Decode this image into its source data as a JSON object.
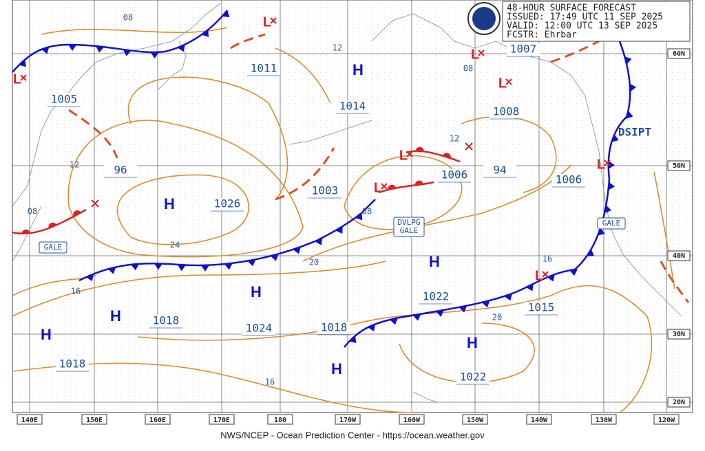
{
  "header": {
    "lines": [
      "48-HOUR SURFACE FORECAST",
      "ISSUED: 17:49 UTC 11 SEP 2025",
      "VALID:  12:00 UTC 13 SEP 2025",
      "FCSTR:  Ehrbar"
    ]
  },
  "footer": "NWS/NCEP - Ocean Prediction Center - https://ocean.weather.gov",
  "longitudes": [
    "140E",
    "150E",
    "160E",
    "170E",
    "180",
    "170W",
    "160W",
    "150W",
    "140W",
    "130W",
    "120W"
  ],
  "latitudes": [
    "60N",
    "50N",
    "40N",
    "30N",
    "20N"
  ],
  "pressure_labels": [
    "1011",
    "1005",
    "1014",
    "1008",
    "1007",
    "96",
    "1003",
    "1006",
    "94",
    "1006",
    "1026",
    "1022",
    "1018",
    "1024",
    "1018",
    "1015",
    "1022",
    "1018"
  ],
  "isobar_labels": [
    "08",
    "12",
    "08",
    "12",
    "12",
    "08",
    "08",
    "24",
    "20",
    "16",
    "16",
    "20",
    "16"
  ],
  "highs": [
    "H",
    "H",
    "H",
    "H",
    "H",
    "H",
    "H",
    "H"
  ],
  "lows": [
    "L",
    "L",
    "L",
    "L",
    "L",
    "L",
    "L",
    "L"
  ],
  "warnings": {
    "gale_west": "GALE",
    "developing_gale": [
      "DVLPG",
      "GALE"
    ],
    "gale_east": "GALE",
    "dissipating": "DSIPT"
  }
}
